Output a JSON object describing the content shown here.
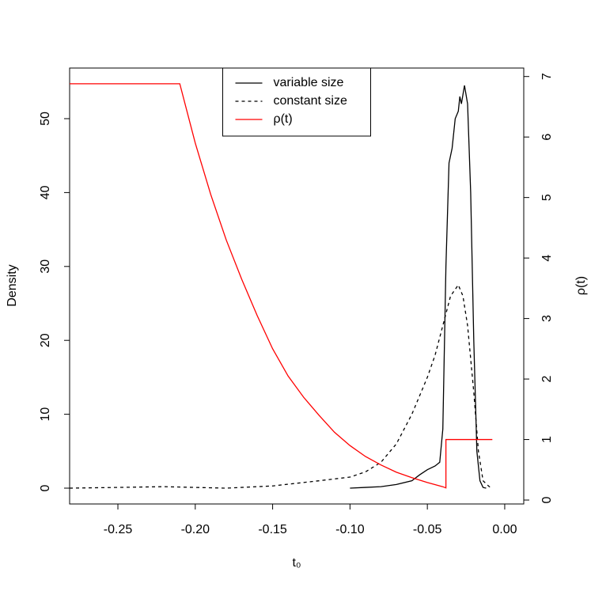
{
  "chart_data": {
    "type": "line",
    "x_label": "t₀",
    "y_label": "Density",
    "y2_label": "ρ(t)",
    "xlim": [
      -0.2812,
      0.0123
    ],
    "ylim": [
      -2.14,
      56.85
    ],
    "y2lim": [
      -0.065,
      7.14
    ],
    "xticks": [
      {
        "value": -0.25,
        "label": "-0.25"
      },
      {
        "value": -0.2,
        "label": "-0.20"
      },
      {
        "value": -0.15,
        "label": "-0.15"
      },
      {
        "value": -0.1,
        "label": "-0.10"
      },
      {
        "value": -0.05,
        "label": "-0.05"
      },
      {
        "value": 0,
        "label": "0.00"
      }
    ],
    "yticks": [
      0,
      10,
      20,
      30,
      40,
      50
    ],
    "y2ticks": [
      0,
      1,
      2,
      3,
      4,
      5,
      6,
      7
    ],
    "legend": "top",
    "series": [
      {
        "name": "variable size",
        "color": "#000000",
        "linestyle": "solid",
        "x": [
          -0.1,
          -0.09,
          -0.08,
          -0.07,
          -0.06,
          -0.055,
          -0.05,
          -0.045,
          -0.042,
          -0.04,
          -0.038,
          -0.036,
          -0.034,
          -0.032,
          -0.03,
          -0.029,
          -0.028,
          -0.026,
          -0.024,
          -0.022,
          -0.02,
          -0.018,
          -0.016,
          -0.014,
          -0.012
        ],
        "values": [
          0,
          0.1,
          0.2,
          0.5,
          1,
          1.8,
          2.5,
          3,
          3.5,
          8,
          30,
          44,
          46,
          50,
          51,
          53,
          52,
          54.5,
          52,
          40,
          20,
          5,
          1,
          0.1,
          0
        ]
      },
      {
        "name": "constant size",
        "color": "#000000",
        "linestyle": "dashed",
        "x": [
          -0.2812,
          -0.25,
          -0.22,
          -0.2,
          -0.18,
          -0.15,
          -0.12,
          -0.1,
          -0.09,
          -0.08,
          -0.07,
          -0.06,
          -0.05,
          -0.045,
          -0.04,
          -0.035,
          -0.03,
          -0.027,
          -0.024,
          -0.02,
          -0.017,
          -0.014,
          -0.01,
          -0.008
        ],
        "values": [
          0,
          0.1,
          0.2,
          0.1,
          0,
          0.3,
          1,
          1.5,
          2.2,
          3.5,
          6,
          10,
          15,
          18,
          22,
          26,
          27.5,
          26,
          22,
          13,
          5,
          1,
          0.2,
          0
        ]
      },
      {
        "name": "ρ(t)",
        "color": "#ff0000",
        "linestyle": "solid",
        "axis": "y2",
        "x": [
          -0.2812,
          -0.21,
          -0.2,
          -0.19,
          -0.18,
          -0.17,
          -0.16,
          -0.15,
          -0.14,
          -0.13,
          -0.12,
          -0.11,
          -0.1,
          -0.09,
          -0.08,
          -0.07,
          -0.06,
          -0.05,
          -0.04,
          -0.038,
          -0.038,
          -0.008
        ],
        "values": [
          6.88,
          6.88,
          5.9,
          5.05,
          4.3,
          3.65,
          3.05,
          2.5,
          2.05,
          1.7,
          1.4,
          1.12,
          0.9,
          0.72,
          0.58,
          0.46,
          0.37,
          0.29,
          0.22,
          0.2,
          1.0,
          1.0
        ]
      }
    ]
  }
}
